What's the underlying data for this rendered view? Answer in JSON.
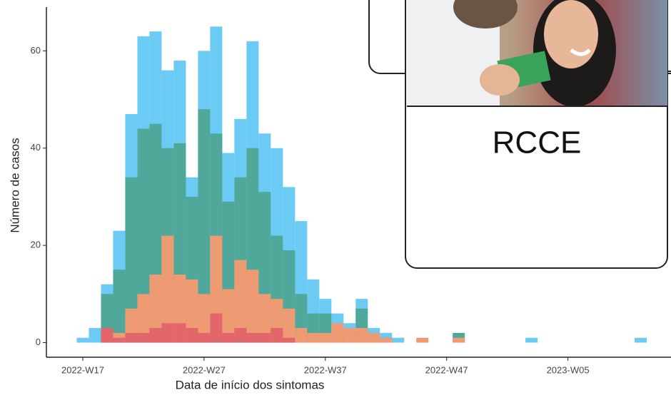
{
  "chart_data": {
    "type": "histogram",
    "x_label": "Data de início dos sintomas",
    "y_label": "Número de casos",
    "x": [
      17,
      18,
      19,
      20,
      21,
      22,
      23,
      24,
      25,
      26,
      27,
      28,
      29,
      30,
      31,
      32,
      33,
      34,
      35,
      36,
      37,
      38,
      39,
      40,
      41,
      42,
      43,
      44,
      45,
      46,
      47,
      48,
      49,
      50,
      51,
      52,
      53,
      54,
      55,
      56,
      57,
      58,
      59,
      60,
      61,
      62,
      63
    ],
    "series": [
      {
        "color": "#6ccbf4",
        "values": [
          1,
          3,
          12,
          23,
          47,
          63,
          64,
          56,
          58,
          34,
          60,
          65,
          39,
          46,
          62,
          43,
          40,
          32,
          25,
          13,
          9,
          6,
          4,
          9,
          3,
          2,
          1,
          0,
          0,
          0,
          0,
          0,
          0,
          0,
          0,
          0,
          0,
          1,
          0,
          0,
          0,
          0,
          0,
          0,
          0,
          0,
          1
        ]
      },
      {
        "color": "#4fa899",
        "values": [
          0,
          0,
          10,
          15,
          34,
          44,
          45,
          40,
          41,
          30,
          48,
          43,
          29,
          34,
          40,
          31,
          22,
          19,
          10,
          6,
          6,
          2,
          2,
          7,
          1,
          1,
          0,
          0,
          0,
          0,
          0,
          2,
          0,
          0,
          0,
          0,
          0,
          0,
          0,
          0,
          0,
          0,
          0,
          0,
          0,
          0,
          0
        ]
      },
      {
        "color": "#ee9a72",
        "values": [
          0,
          0,
          2,
          2,
          7,
          10,
          14,
          22,
          14,
          13,
          10,
          22,
          11,
          17,
          15,
          10,
          9,
          7,
          3,
          2,
          2,
          4,
          3,
          3,
          2,
          1,
          0,
          0,
          1,
          0,
          0,
          1,
          0,
          0,
          0,
          0,
          0,
          0,
          0,
          0,
          0,
          0,
          0,
          0,
          0,
          0,
          0
        ]
      },
      {
        "color": "#e3676a",
        "values": [
          0,
          0,
          3,
          1,
          2,
          2,
          3,
          4,
          4,
          3,
          2,
          6,
          2,
          3,
          2,
          2,
          3,
          1,
          0,
          0,
          0,
          0,
          0,
          0,
          0,
          0,
          0,
          0,
          0,
          0,
          0,
          0,
          0,
          0,
          0,
          0,
          0,
          0,
          0,
          0,
          0,
          0,
          0,
          0,
          0,
          0,
          0
        ]
      }
    ],
    "xlim": [
      14,
      65.5
    ],
    "xticks": [
      {
        "value": 17,
        "label": "2022-W17"
      },
      {
        "value": 27,
        "label": "2022-W27"
      },
      {
        "value": 37,
        "label": "2022-W37"
      },
      {
        "value": 47,
        "label": "2022-W47"
      },
      {
        "value": 57,
        "label": "2023-W05"
      }
    ],
    "ylim": [
      -3,
      69
    ],
    "yticks": [
      0,
      20,
      40,
      60
    ]
  },
  "card": {
    "label": "RCCE"
  }
}
